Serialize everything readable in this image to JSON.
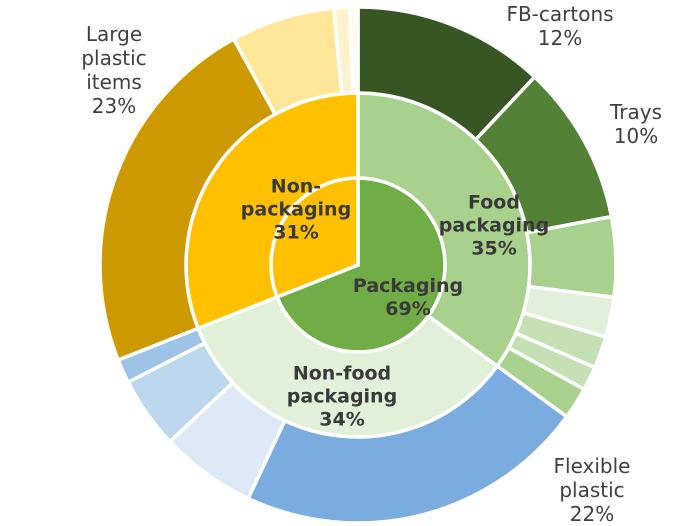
{
  "chart_data": {
    "type": "sunburst",
    "unit": "%",
    "rings": [
      [
        {
          "name": "Packaging",
          "value": 69,
          "color": "#70ad47",
          "label": "Packaging\n69%"
        },
        {
          "name": "Non-packaging",
          "value": 31,
          "color": "#ffc000",
          "label": ""
        }
      ],
      [
        {
          "name": "Food packaging",
          "value": 35,
          "color": "#a9d18e",
          "label": "Food\npackaging\n35%"
        },
        {
          "name": "Non-food packaging",
          "value": 34,
          "color": "#e2f0d9",
          "label": "Non-food\npackaging\n34%"
        },
        {
          "name": "Non-packaging",
          "value": 31,
          "color": "#ffc000",
          "label": "Non-\npackaging\n31%"
        }
      ],
      [
        {
          "name": "FB-cartons",
          "value": 12,
          "color": "#375623",
          "label": "FB-cartons\n12%"
        },
        {
          "name": "Trays",
          "value": 10,
          "color": "#538135",
          "label": "Trays\n10%"
        },
        {
          "name": "",
          "value": 5,
          "color": "#a9d18e",
          "label": ""
        },
        {
          "name": "",
          "value": 2.5,
          "color": "#e2efda",
          "label": ""
        },
        {
          "name": "",
          "value": 2,
          "color": "#c5e0b4",
          "label": ""
        },
        {
          "name": "",
          "value": 1.5,
          "color": "#c5e0b4",
          "label": ""
        },
        {
          "name": "",
          "value": 2,
          "color": "#a9d18e",
          "label": ""
        },
        {
          "name": "Flexible plastic",
          "value": 22,
          "color": "#7aacdf",
          "label": "Flexible plastic\n22%"
        },
        {
          "name": "",
          "value": 6,
          "color": "#dde9f6",
          "label": ""
        },
        {
          "name": "",
          "value": 4.5,
          "color": "#bdd7ee",
          "label": ""
        },
        {
          "name": "",
          "value": 1.5,
          "color": "#9dc3e6",
          "label": ""
        },
        {
          "name": "Large plastic items",
          "value": 23,
          "color": "#cc9900",
          "label": "Large\nplastic\nitems\n23%"
        },
        {
          "name": "",
          "value": 6.5,
          "color": "#ffe699",
          "label": ""
        },
        {
          "name": "",
          "value": 1,
          "color": "#fff2cc",
          "label": ""
        },
        {
          "name": "",
          "value": 0.5,
          "color": "#fffaeb",
          "label": ""
        }
      ]
    ]
  }
}
